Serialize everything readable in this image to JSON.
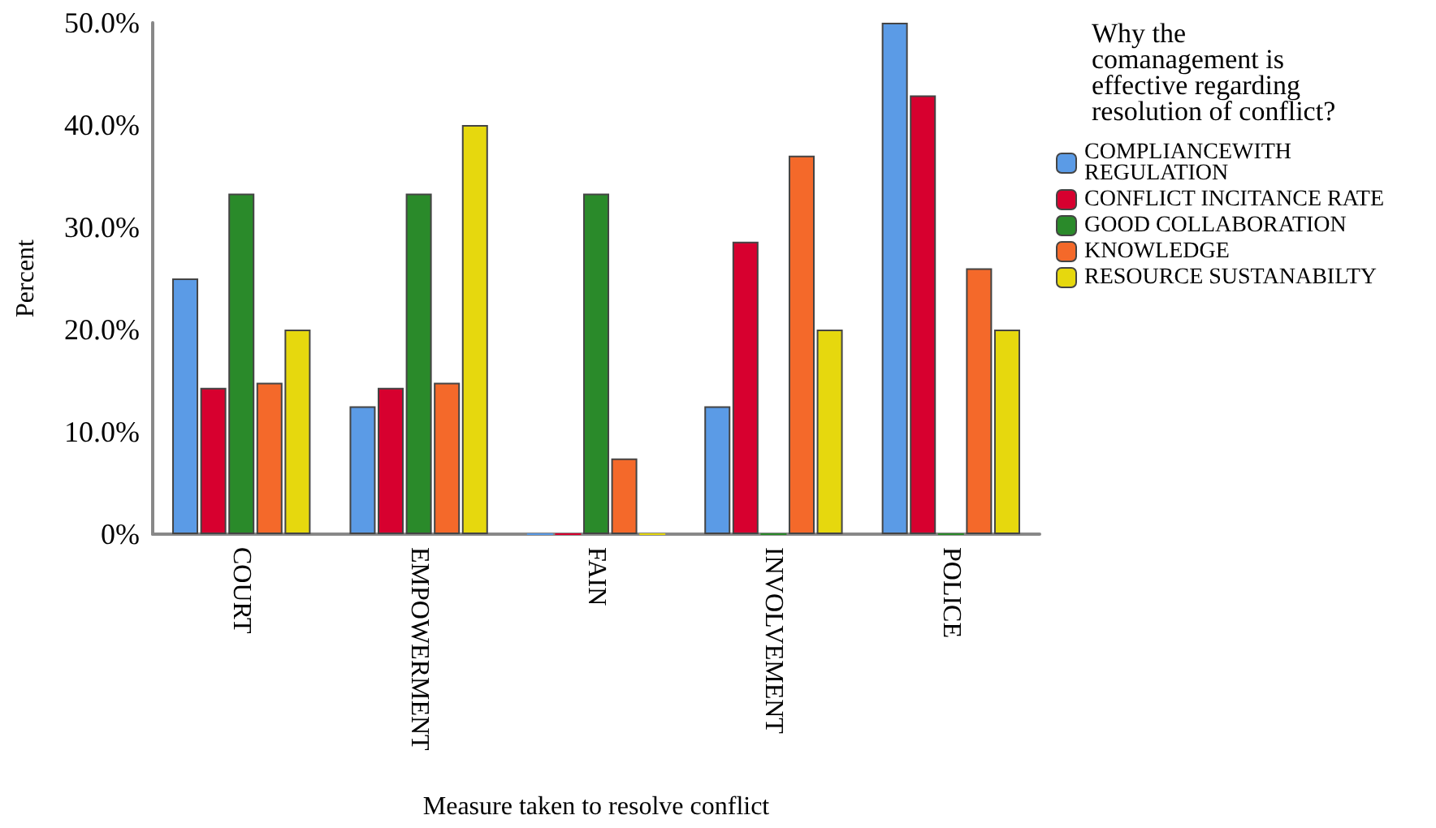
{
  "chart_data": {
    "type": "bar",
    "xlabel": "Measure taken to resolve conflict",
    "ylabel": "Percent",
    "legend_title": "Why the comanagement is effective regarding resolution of conflict?",
    "categories": [
      "COURT",
      "EMPOWERMENT",
      "FAIN",
      "INVOLVEMENT",
      "POLICE"
    ],
    "series": [
      {
        "name": "COMPLIANCEWITH REGULATION",
        "color": "#5b9be6",
        "values": [
          25,
          12.5,
          0,
          12.5,
          50
        ]
      },
      {
        "name": "CONFLICT INCITANCE RATE",
        "color": "#d7002f",
        "values": [
          14.3,
          14.3,
          0,
          28.6,
          42.9
        ]
      },
      {
        "name": "GOOD COLLABORATION",
        "color": "#2a8a2a",
        "values": [
          33.3,
          33.3,
          33.3,
          0,
          0
        ]
      },
      {
        "name": "KNOWLEDGE",
        "color": "#f4692a",
        "values": [
          14.8,
          14.8,
          7.4,
          37,
          26
        ]
      },
      {
        "name": "RESOURCE SUSTANABILTY",
        "color": "#e6d80e",
        "values": [
          20,
          40,
          0,
          20,
          20
        ]
      }
    ],
    "ylim": [
      0,
      50
    ],
    "yticks": [
      {
        "value": 0,
        "label": "0%"
      },
      {
        "value": 10,
        "label": "10.0%"
      },
      {
        "value": 20,
        "label": "20.0%"
      },
      {
        "value": 30,
        "label": "30.0%"
      },
      {
        "value": 40,
        "label": "40.0%"
      },
      {
        "value": 50,
        "label": "50.0%"
      }
    ],
    "grid": false,
    "legend": "right"
  }
}
